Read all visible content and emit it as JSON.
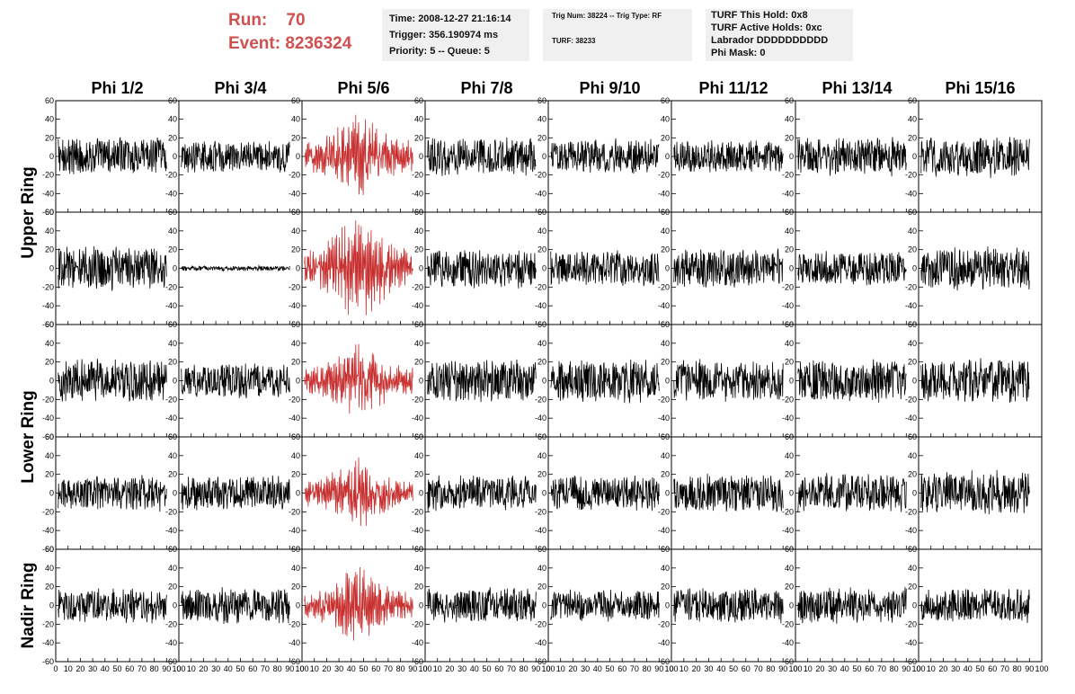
{
  "header": {
    "run_label": "Run:    70",
    "event_label": "Event: 8236324",
    "info1": [
      "Time: 2008-12-27 21:16:14",
      "Trigger: 356.190974 ms",
      "Priority: 5 -- Queue: 5"
    ],
    "info2": [
      "Trig Num: 38224 -- Trig Type: RF",
      "TURF: 38233"
    ],
    "info3": [
      "TURF This Hold: 0x8",
      "TURF Active Holds: 0xc",
      "Labrador DDDDDDDDDD",
      "Phi Mask: 0"
    ]
  },
  "colors": {
    "normal_trace": "#000000",
    "triggered_trace": "#c83030",
    "run_text": "#d05050",
    "info_bg": "#f0f0f0"
  },
  "chart_data": {
    "type": "line",
    "columns": [
      "Phi 1/2",
      "Phi 3/4",
      "Phi 5/6",
      "Phi 7/8",
      "Phi 9/10",
      "Phi 11/12",
      "Phi 13/14",
      "Phi 15/16"
    ],
    "rings": [
      "Upper Ring",
      "Lower Ring",
      "Nadir Ring"
    ],
    "subplot_rows": 5,
    "xlim": [
      0,
      100
    ],
    "ylim": [
      -60,
      60
    ],
    "x_ticks": [
      0,
      10,
      20,
      30,
      40,
      50,
      60,
      70,
      80,
      90,
      100
    ],
    "x_tick_labels": [
      "0",
      "10",
      "20",
      "30",
      "40",
      "50",
      "60",
      "70",
      "80",
      "90",
      "100"
    ],
    "y_ticks": [
      -60,
      -40,
      -20,
      0,
      20,
      40,
      60
    ],
    "y_tick_labels": [
      "-60",
      "-40",
      "-20",
      "0",
      "20",
      "40",
      "60"
    ],
    "waveforms": [
      [
        {
          "amplitude": 22,
          "triggered": false
        },
        {
          "amplitude": 18,
          "triggered": false
        },
        {
          "amplitude": 45,
          "triggered": true
        },
        {
          "amplitude": 22,
          "triggered": false
        },
        {
          "amplitude": 20,
          "triggered": false
        },
        {
          "amplitude": 18,
          "triggered": false
        },
        {
          "amplitude": 22,
          "triggered": false
        },
        {
          "amplitude": 24,
          "triggered": false
        }
      ],
      [
        {
          "amplitude": 25,
          "triggered": false
        },
        {
          "amplitude": 3,
          "triggered": false
        },
        {
          "amplitude": 52,
          "triggered": true
        },
        {
          "amplitude": 22,
          "triggered": false
        },
        {
          "amplitude": 20,
          "triggered": false
        },
        {
          "amplitude": 22,
          "triggered": false
        },
        {
          "amplitude": 20,
          "triggered": false
        },
        {
          "amplitude": 24,
          "triggered": false
        }
      ],
      [
        {
          "amplitude": 25,
          "triggered": false
        },
        {
          "amplitude": 20,
          "triggered": false
        },
        {
          "amplitude": 40,
          "triggered": true
        },
        {
          "amplitude": 24,
          "triggered": false
        },
        {
          "amplitude": 24,
          "triggered": false
        },
        {
          "amplitude": 24,
          "triggered": false
        },
        {
          "amplitude": 25,
          "triggered": false
        },
        {
          "amplitude": 26,
          "triggered": false
        }
      ],
      [
        {
          "amplitude": 20,
          "triggered": false
        },
        {
          "amplitude": 20,
          "triggered": false
        },
        {
          "amplitude": 36,
          "triggered": true
        },
        {
          "amplitude": 20,
          "triggered": false
        },
        {
          "amplitude": 20,
          "triggered": false
        },
        {
          "amplitude": 22,
          "triggered": false
        },
        {
          "amplitude": 22,
          "triggered": false
        },
        {
          "amplitude": 25,
          "triggered": false
        }
      ],
      [
        {
          "amplitude": 20,
          "triggered": false
        },
        {
          "amplitude": 20,
          "triggered": false
        },
        {
          "amplitude": 38,
          "triggered": true
        },
        {
          "amplitude": 20,
          "triggered": false
        },
        {
          "amplitude": 18,
          "triggered": false
        },
        {
          "amplitude": 20,
          "triggered": false
        },
        {
          "amplitude": 20,
          "triggered": false
        },
        {
          "amplitude": 20,
          "triggered": false
        }
      ]
    ]
  }
}
